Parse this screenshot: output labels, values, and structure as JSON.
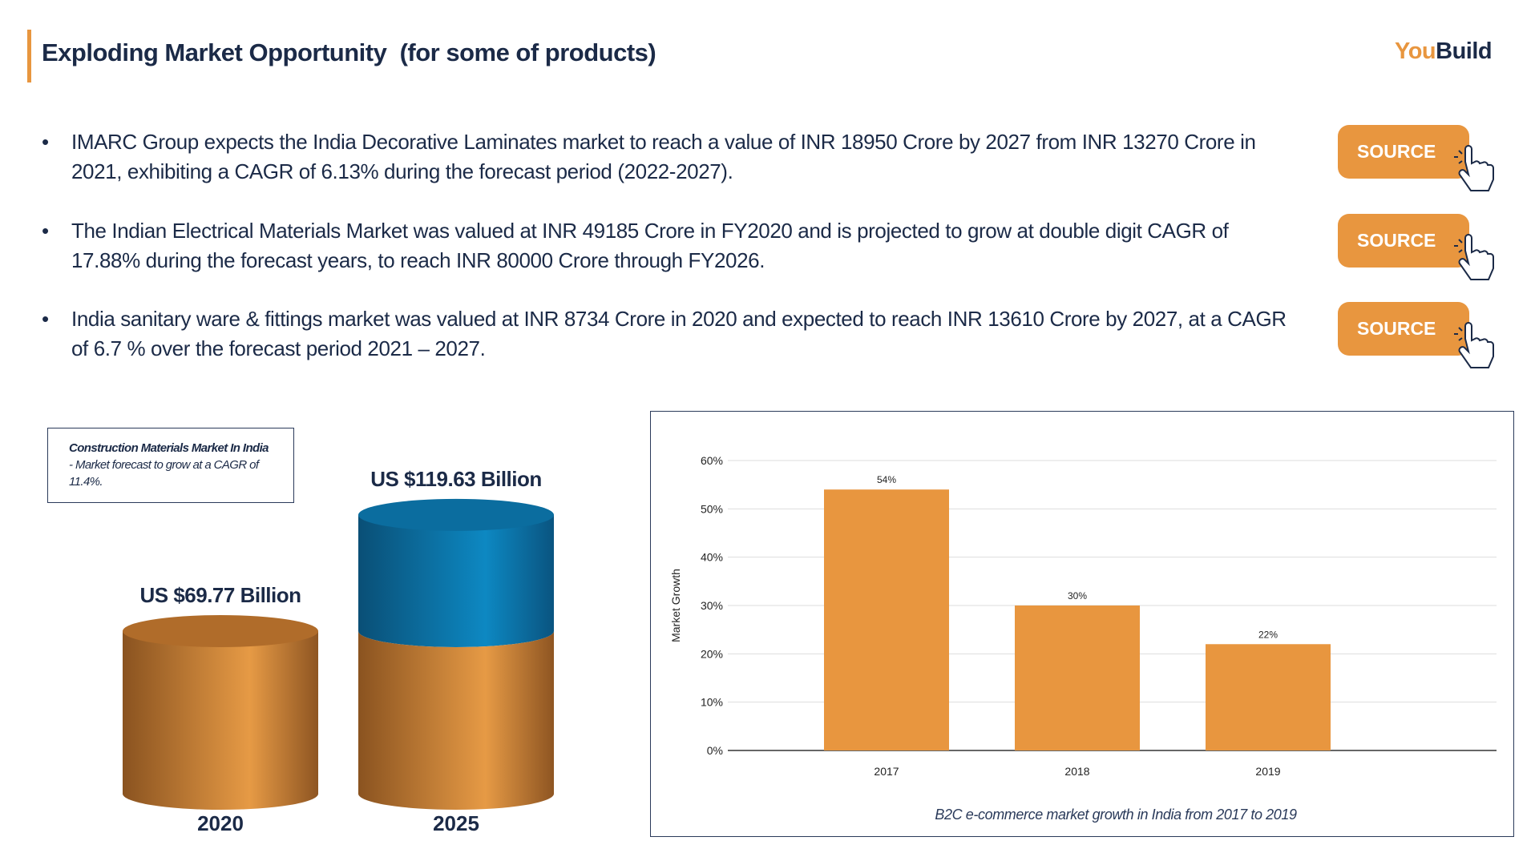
{
  "header": {
    "title": "Exploding Market Opportunity  (for some of products)",
    "logo_you": "You",
    "logo_build": "Build"
  },
  "bullets": [
    {
      "text": "IMARC Group expects the India Decorative Laminates market to reach a value of INR 18950 Crore by 2027 from INR 13270 Crore in 2021, exhibiting a CAGR of 6.13% during the forecast period (2022-2027).",
      "button": "SOURCE"
    },
    {
      "text": "The Indian Electrical Materials Market was valued at INR 49185 Crore in FY2020 and is projected to grow at double digit CAGR of 17.88% during the forecast years, to reach INR 80000 Crore through FY2026.",
      "button": "SOURCE"
    },
    {
      "text": "India sanitary ware & fittings market was valued at INR 8734 Crore in 2020 and expected to reach INR 13610 Crore by 2027, at a CAGR of 6.7 % over the forecast period 2021 – 2027.",
      "button": "SOURCE"
    }
  ],
  "market_size": {
    "note_title": "Construction Materials Market In India",
    "note_text": " - Market forecast to grow at a CAGR of 11.4%.",
    "years": [
      {
        "year": "2020",
        "value": 69.77,
        "label": "US $69.77 Billion"
      },
      {
        "year": "2025",
        "value": 119.63,
        "label": "US $119.63 Billion"
      }
    ]
  },
  "chart_data": {
    "type": "bar",
    "categories": [
      "2017",
      "2018",
      "2019"
    ],
    "values": [
      54,
      30,
      22
    ],
    "value_labels": [
      "54%",
      "30%",
      "22%"
    ],
    "color": "#e8963f",
    "ylabel": "Market Growth",
    "caption": "B2C e-commerce market growth in India from 2017 to 2019",
    "ylim": [
      0,
      60
    ],
    "yticks": [
      {
        "value": 0,
        "label": "0%"
      },
      {
        "value": 10,
        "label": "10%"
      },
      {
        "value": 20,
        "label": "20%"
      },
      {
        "value": 30,
        "label": "30%"
      },
      {
        "value": 40,
        "label": "40%"
      },
      {
        "value": 50,
        "label": "50%"
      },
      {
        "value": 60,
        "label": "60%"
      }
    ],
    "grid": true
  }
}
